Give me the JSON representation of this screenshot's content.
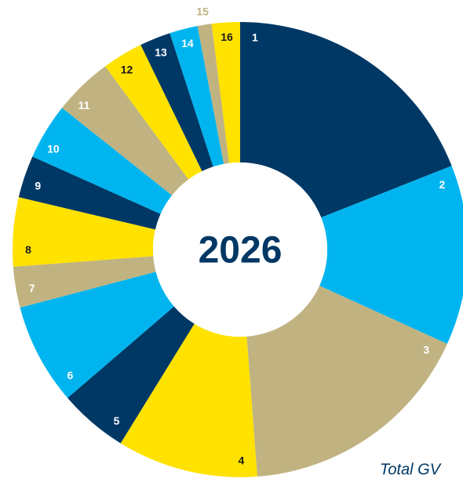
{
  "chart_data": {
    "type": "pie",
    "center_label": "2026",
    "note": "Total GV",
    "categories": [
      "1",
      "2",
      "3",
      "4",
      "5",
      "6",
      "7",
      "8",
      "9",
      "10",
      "11",
      "12",
      "13",
      "14",
      "15",
      "16"
    ],
    "values": [
      19,
      12.8,
      17,
      10,
      4.9,
      7.2,
      2.9,
      4.9,
      3,
      4,
      4.2,
      2.9,
      2.2,
      2,
      1,
      2
    ],
    "colors": [
      "#003865",
      "#00b5ef",
      "#c0b381",
      "#ffe200",
      "#003865",
      "#00b5ef",
      "#c0b381",
      "#ffe200",
      "#003865",
      "#00b5ef",
      "#c0b381",
      "#ffe200",
      "#003865",
      "#00b5ef",
      "#c0b381",
      "#ffe200"
    ]
  }
}
